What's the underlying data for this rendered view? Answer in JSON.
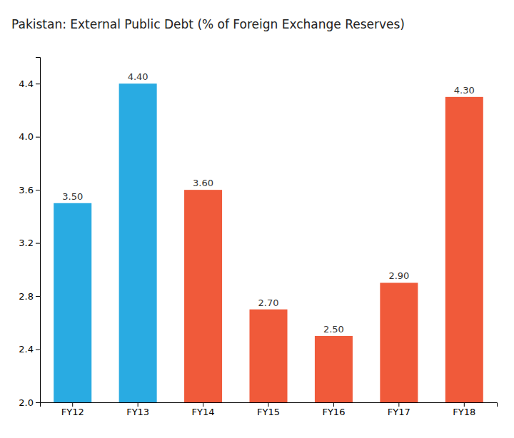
{
  "chart_data": {
    "type": "bar",
    "title": "Pakistan: External Public Debt (% of Foreign Exchange Reserves)",
    "categories": [
      "FY12",
      "FY13",
      "FY14",
      "FY15",
      "FY16",
      "FY17",
      "FY18"
    ],
    "values": [
      3.5,
      4.4,
      3.6,
      2.7,
      2.5,
      2.9,
      4.3
    ],
    "value_labels": [
      "3.50",
      "4.40",
      "3.60",
      "2.70",
      "2.50",
      "2.90",
      "4.30"
    ],
    "colors": [
      "#29ABE2",
      "#29ABE2",
      "#F05A3A",
      "#F05A3A",
      "#F05A3A",
      "#F05A3A",
      "#F05A3A"
    ],
    "ylim": [
      2.0,
      4.6
    ],
    "yticks": [
      {
        "value": 2.0,
        "label": "2.0"
      },
      2.4,
      2.8,
      3.2,
      3.6,
      {
        "value": 4.0,
        "label": "4.0"
      },
      4.4
    ],
    "data_labels": true,
    "grid": false
  }
}
